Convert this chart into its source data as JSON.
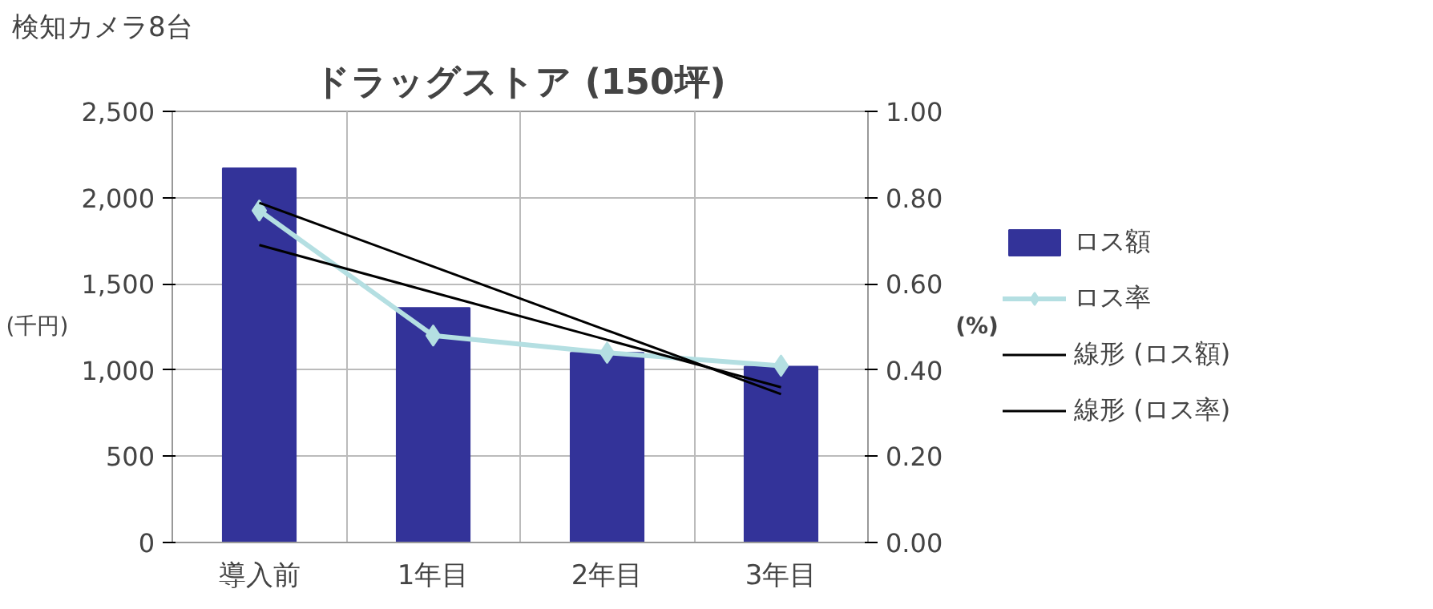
{
  "chart_data": {
    "type": "bar",
    "title": "ドラッグストア (150坪)",
    "annotations": [
      "検知カメラ8台"
    ],
    "ylabel": "(千円)",
    "y2label": "(%)",
    "categories": [
      "導入前",
      "1年目",
      "2年目",
      "3年目"
    ],
    "series": [
      {
        "name": "ロス額",
        "color": "#333399",
        "values": [
          2170,
          1360,
          1100,
          1020
        ]
      },
      {
        "name": "ロス率",
        "type": "line",
        "axis": "y2",
        "color": "#b4dfe2",
        "marker": "diamond",
        "values": [
          0.77,
          0.48,
          0.44,
          0.41
        ]
      },
      {
        "name": "線形 (ロス額)",
        "type": "line",
        "color": "#000000",
        "values": [
          1970,
          1600,
          1230,
          860
        ]
      },
      {
        "name": "線形 (ロス率)",
        "type": "line",
        "axis": "y2",
        "color": "#000000",
        "values": [
          0.69,
          0.58,
          0.47,
          0.36
        ]
      }
    ],
    "ylim": [
      0,
      2500
    ],
    "yticks": [
      0,
      500,
      {
        "value": 1000,
        "label": "1,000"
      },
      {
        "value": 1500,
        "label": "1,500"
      },
      {
        "value": 2000,
        "label": "2,000"
      },
      {
        "value": 2500,
        "label": "2,500"
      }
    ],
    "y2lim": [
      0,
      1
    ],
    "y2ticks": [
      {
        "value": 0,
        "label": "0.00"
      },
      {
        "value": 0.2,
        "label": "0.20"
      },
      {
        "value": 0.4,
        "label": "0.40"
      },
      {
        "value": 0.6,
        "label": "0.60"
      },
      {
        "value": 0.8,
        "label": "0.80"
      },
      {
        "value": 1,
        "label": "1.00"
      }
    ],
    "grid": true,
    "legend": "right"
  }
}
